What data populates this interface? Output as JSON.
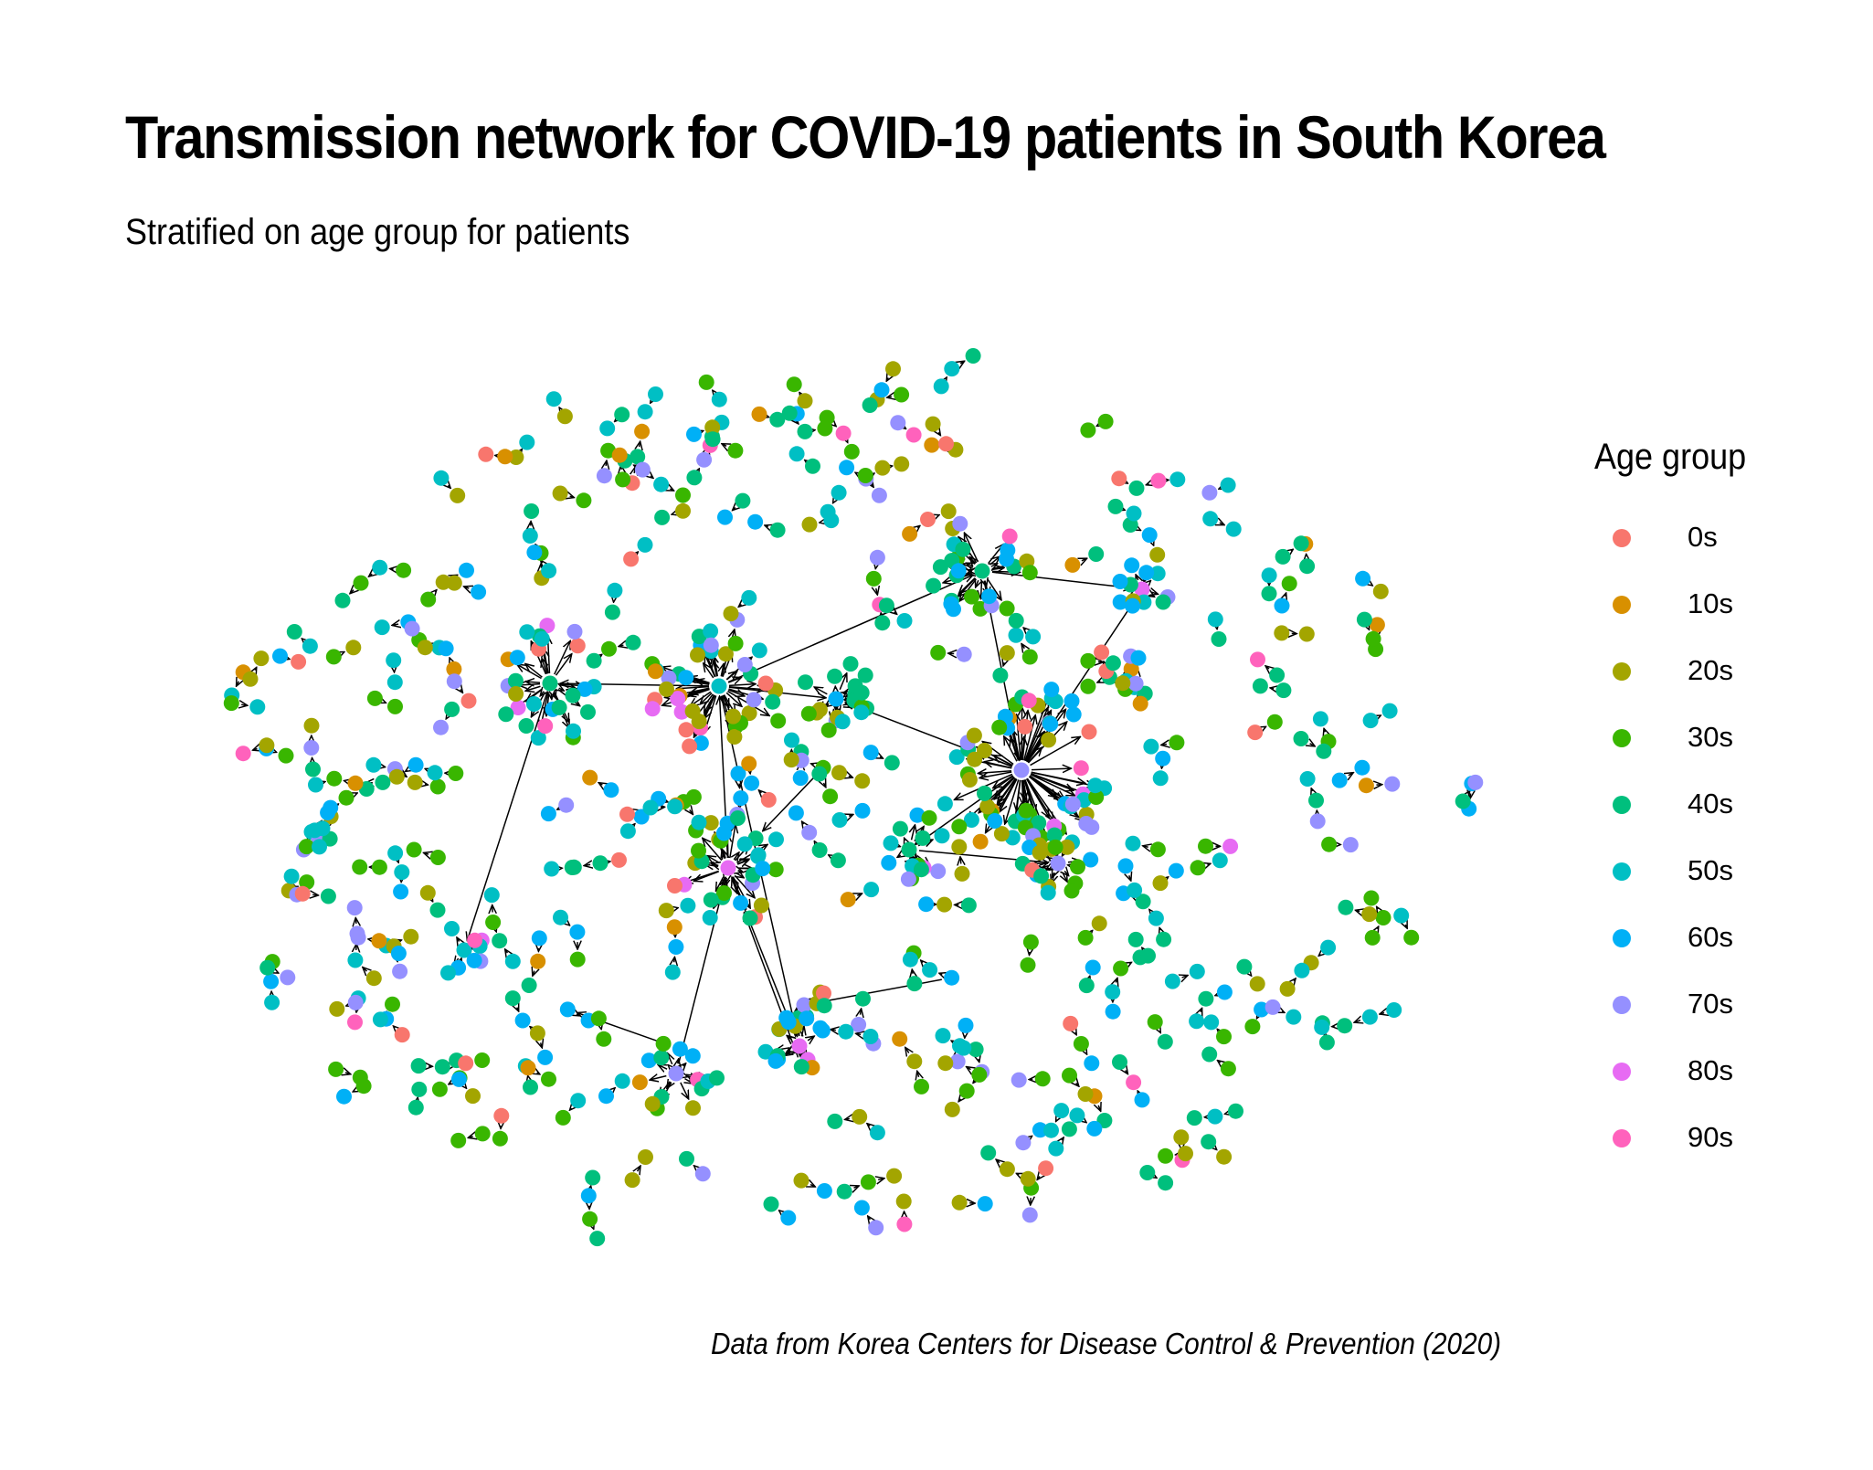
{
  "title": "Transmission network for COVID-19 patients in South Korea",
  "subtitle": "Stratified on age group for patients",
  "caption": "Data from Korea Centers for Disease Control & Prevention (2020)",
  "legend": {
    "title": "Age group",
    "items": [
      {
        "label": "0s",
        "color": "#F8766D"
      },
      {
        "label": "10s",
        "color": "#D89000"
      },
      {
        "label": "20s",
        "color": "#A3A500"
      },
      {
        "label": "30s",
        "color": "#39B600"
      },
      {
        "label": "40s",
        "color": "#00BF7D"
      },
      {
        "label": "50s",
        "color": "#00BFC4"
      },
      {
        "label": "60s",
        "color": "#00B0F6"
      },
      {
        "label": "70s",
        "color": "#9590FF"
      },
      {
        "label": "80s",
        "color": "#E76BF3"
      },
      {
        "label": "90s",
        "color": "#FF62BC"
      }
    ]
  },
  "chart_data": {
    "type": "network",
    "directed": true,
    "node_attribute": "age group",
    "categories": [
      "0s",
      "10s",
      "20s",
      "30s",
      "40s",
      "50s",
      "60s",
      "70s",
      "80s",
      "90s"
    ]
  }
}
